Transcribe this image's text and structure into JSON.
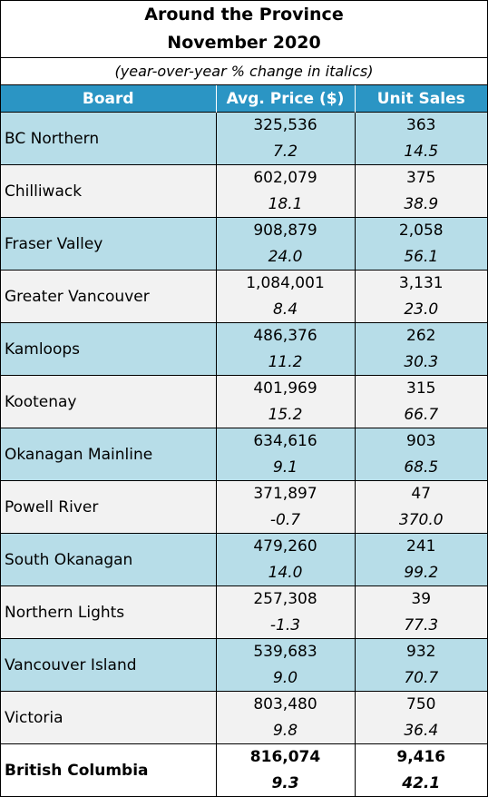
{
  "title": {
    "line1": "Around the Province",
    "line2": "November 2020"
  },
  "subtitle": "(year-over-year % change in italics)",
  "columns": {
    "board": "Board",
    "price": "Avg. Price ($)",
    "units": "Unit Sales"
  },
  "rows": [
    {
      "board": "BC Northern",
      "price": "325,536",
      "price_change": "7.2",
      "units": "363",
      "units_change": "14.5"
    },
    {
      "board": "Chilliwack",
      "price": "602,079",
      "price_change": "18.1",
      "units": "375",
      "units_change": "38.9"
    },
    {
      "board": "Fraser Valley",
      "price": "908,879",
      "price_change": "24.0",
      "units": "2,058",
      "units_change": "56.1"
    },
    {
      "board": "Greater Vancouver",
      "price": "1,084,001",
      "price_change": "8.4",
      "units": "3,131",
      "units_change": "23.0"
    },
    {
      "board": "Kamloops",
      "price": "486,376",
      "price_change": "11.2",
      "units": "262",
      "units_change": "30.3"
    },
    {
      "board": "Kootenay",
      "price": "401,969",
      "price_change": "15.2",
      "units": "315",
      "units_change": "66.7"
    },
    {
      "board": "Okanagan Mainline",
      "price": "634,616",
      "price_change": "9.1",
      "units": "903",
      "units_change": "68.5"
    },
    {
      "board": "Powell River",
      "price": "371,897",
      "price_change": "-0.7",
      "units": "47",
      "units_change": "370.0"
    },
    {
      "board": "South Okanagan",
      "price": "479,260",
      "price_change": "14.0",
      "units": "241",
      "units_change": "99.2"
    },
    {
      "board": "Northern Lights",
      "price": "257,308",
      "price_change": "-1.3",
      "units": "39",
      "units_change": "77.3"
    },
    {
      "board": "Vancouver Island",
      "price": "539,683",
      "price_change": "9.0",
      "units": "932",
      "units_change": "70.7"
    },
    {
      "board": "Victoria",
      "price": "803,480",
      "price_change": "9.8",
      "units": "750",
      "units_change": "36.4"
    }
  ],
  "total": {
    "board": "British Columbia",
    "price": "816,074",
    "price_change": "9.3",
    "units": "9,416",
    "units_change": "42.1"
  },
  "colors": {
    "header_bg": "#2b95c4",
    "row_blue": "#b7dde8",
    "row_grey": "#f2f2f2"
  }
}
